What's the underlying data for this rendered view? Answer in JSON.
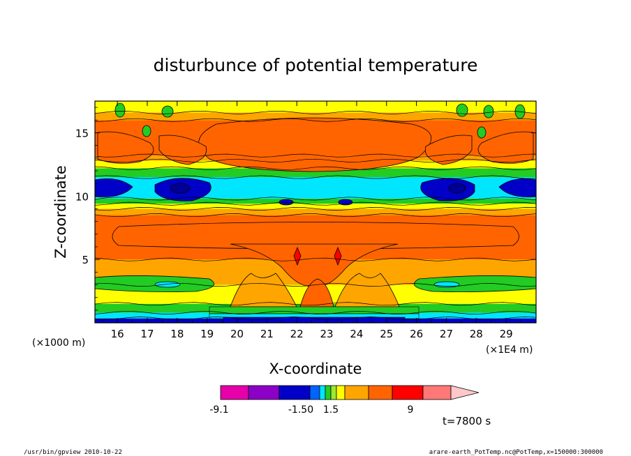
{
  "chart_data": {
    "type": "heatmap",
    "title": "disturbunce of potential temperature",
    "xlabel": "X-coordinate",
    "ylabel": "Z-coordinate",
    "x_unit_left": "(×1000 m)",
    "x_unit_right": "(×1E4 m)",
    "xlim": [
      15.25,
      30.0
    ],
    "ylim": [
      0,
      17.5
    ],
    "x_ticks": [
      "16",
      "17",
      "18",
      "19",
      "20",
      "21",
      "22",
      "23",
      "24",
      "25",
      "26",
      "27",
      "28",
      "29"
    ],
    "x_tick_values": [
      16,
      17,
      18,
      19,
      20,
      21,
      22,
      23,
      24,
      25,
      26,
      27,
      28,
      29
    ],
    "y_ticks": [
      "5",
      "10",
      "15"
    ],
    "y_tick_values": [
      5,
      10,
      15
    ],
    "bands": [
      {
        "name": "surface-blue",
        "z": [
          0.0,
          0.35
        ],
        "color": "#0000c8"
      },
      {
        "name": "surface-cyan",
        "z": [
          0.35,
          0.8
        ],
        "color": "#00e6ff"
      },
      {
        "name": "low-green",
        "z": [
          0.8,
          1.5
        ],
        "color": "#22cc22"
      },
      {
        "name": "low-yellow",
        "z": [
          1.5,
          3.0
        ],
        "color": "#ffff00"
      },
      {
        "name": "mid-orange-low",
        "z": [
          3.0,
          5.0
        ],
        "color": "#ffa500"
      },
      {
        "name": "mid-dark-orange",
        "z": [
          5.0,
          8.5
        ],
        "color": "#ff6400"
      },
      {
        "name": "mid-orange-high",
        "z": [
          8.5,
          9.0
        ],
        "color": "#ffa500"
      },
      {
        "name": "yellow-9",
        "z": [
          9.0,
          9.4
        ],
        "color": "#ffff00"
      },
      {
        "name": "green-9",
        "z": [
          9.4,
          9.8
        ],
        "color": "#22cc22"
      },
      {
        "name": "cyan-10",
        "z": [
          9.8,
          11.5
        ],
        "color": "#00e6ff"
      },
      {
        "name": "green-12",
        "z": [
          11.5,
          12.2
        ],
        "color": "#22cc22"
      },
      {
        "name": "yellow-12",
        "z": [
          12.2,
          12.8
        ],
        "color": "#ffff00"
      },
      {
        "name": "orange-13",
        "z": [
          12.8,
          13.2
        ],
        "color": "#ffa500"
      },
      {
        "name": "top-dark-orange",
        "z": [
          13.2,
          16.0
        ],
        "color": "#ff6400"
      },
      {
        "name": "top-orange",
        "z": [
          16.0,
          16.6
        ],
        "color": "#ffa500"
      },
      {
        "name": "top-yellow",
        "z": [
          16.6,
          17.5
        ],
        "color": "#ffff00"
      }
    ],
    "colorbar": {
      "colors": [
        "#e600aa",
        "#8c00c8",
        "#0000c8",
        "#0064ff",
        "#00e6ff",
        "#22cc22",
        "#a0e632",
        "#ffff00",
        "#ffa500",
        "#ff6400",
        "#ff0000",
        "#ff7878",
        "#ffc8c8"
      ],
      "labels": [
        "-9.1",
        "-1.50",
        "1.5",
        "9"
      ]
    },
    "time_label": "t=7800 s"
  },
  "footer": {
    "left": "/usr/bin/gpview   2010-10-22",
    "right": "arare-earth_PotTemp.nc@PotTemp,x=150000:300000"
  }
}
